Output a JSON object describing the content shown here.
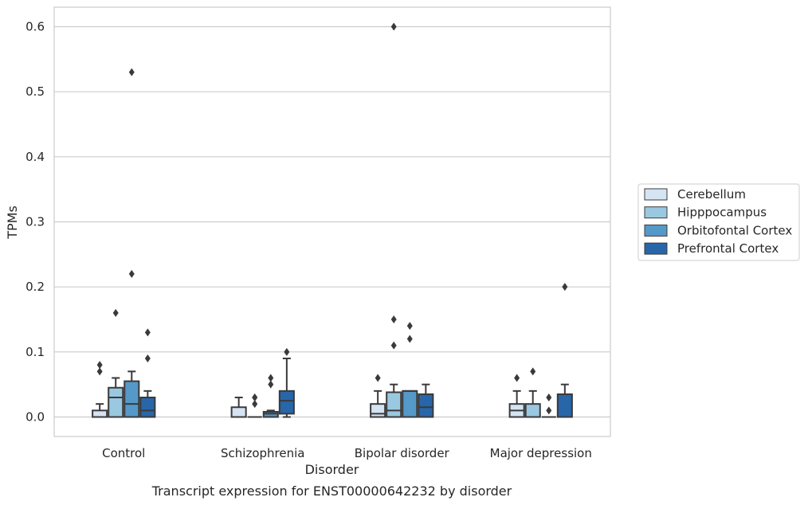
{
  "chart_data": {
    "type": "box",
    "title": "",
    "caption": "Transcript expression for ENST00000642232 by disorder",
    "xlabel": "Disorder",
    "ylabel": "TPMs",
    "ylim": [
      -0.03,
      0.63
    ],
    "yticks": [
      "0.0",
      "0.1",
      "0.2",
      "0.3",
      "0.4",
      "0.5",
      "0.6"
    ],
    "ytick_values": [
      0.0,
      0.1,
      0.2,
      0.3,
      0.4,
      0.5,
      0.6
    ],
    "grid": "horizontal",
    "legend_position": "right",
    "categories": [
      "Control",
      "Schizophrenia",
      "Bipolar disorder",
      "Major depression"
    ],
    "series": [
      {
        "name": "Cerebellum",
        "color": "#d5e4f2",
        "boxes": [
          {
            "q1": 0.0,
            "median": 0.0,
            "q3": 0.01,
            "whisker_low": 0.0,
            "whisker_high": 0.02,
            "outliers": [
              0.07,
              0.08
            ]
          },
          {
            "q1": 0.0,
            "median": 0.0,
            "q3": 0.015,
            "whisker_low": 0.0,
            "whisker_high": 0.03,
            "outliers": []
          },
          {
            "q1": 0.0,
            "median": 0.005,
            "q3": 0.02,
            "whisker_low": 0.0,
            "whisker_high": 0.04,
            "outliers": [
              0.06
            ]
          },
          {
            "q1": 0.0,
            "median": 0.01,
            "q3": 0.02,
            "whisker_low": 0.0,
            "whisker_high": 0.04,
            "outliers": [
              0.06
            ]
          }
        ]
      },
      {
        "name": "Hipppocampus",
        "color": "#9ac8e1",
        "boxes": [
          {
            "q1": 0.0,
            "median": 0.03,
            "q3": 0.045,
            "whisker_low": 0.0,
            "whisker_high": 0.06,
            "outliers": [
              0.16
            ]
          },
          {
            "q1": 0.0,
            "median": 0.0,
            "q3": 0.0,
            "whisker_low": 0.0,
            "whisker_high": 0.0,
            "outliers": [
              0.02,
              0.03,
              0.03
            ]
          },
          {
            "q1": 0.0,
            "median": 0.01,
            "q3": 0.038,
            "whisker_low": 0.0,
            "whisker_high": 0.05,
            "outliers": [
              0.11,
              0.15,
              0.6
            ]
          },
          {
            "q1": 0.0,
            "median": 0.0,
            "q3": 0.02,
            "whisker_low": 0.0,
            "whisker_high": 0.04,
            "outliers": [
              0.07
            ]
          }
        ]
      },
      {
        "name": "Orbitofontal Cortex",
        "color": "#5599c8",
        "boxes": [
          {
            "q1": 0.0,
            "median": 0.02,
            "q3": 0.055,
            "whisker_low": 0.0,
            "whisker_high": 0.07,
            "outliers": [
              0.22,
              0.53
            ]
          },
          {
            "q1": 0.0,
            "median": 0.005,
            "q3": 0.008,
            "whisker_low": 0.0,
            "whisker_high": 0.01,
            "outliers": [
              0.05,
              0.06
            ]
          },
          {
            "q1": 0.0,
            "median": 0.04,
            "q3": 0.04,
            "whisker_low": 0.0,
            "whisker_high": 0.04,
            "outliers": [
              0.12,
              0.14
            ]
          },
          {
            "q1": 0.0,
            "median": 0.0,
            "q3": 0.0,
            "whisker_low": 0.0,
            "whisker_high": 0.0,
            "outliers": [
              0.01,
              0.03
            ]
          }
        ]
      },
      {
        "name": "Prefrontal Cortex",
        "color": "#2766a9",
        "boxes": [
          {
            "q1": 0.0,
            "median": 0.01,
            "q3": 0.03,
            "whisker_low": 0.0,
            "whisker_high": 0.04,
            "outliers": [
              0.09,
              0.13
            ]
          },
          {
            "q1": 0.005,
            "median": 0.025,
            "q3": 0.04,
            "whisker_low": 0.0,
            "whisker_high": 0.09,
            "outliers": [
              0.1
            ]
          },
          {
            "q1": 0.0,
            "median": 0.015,
            "q3": 0.035,
            "whisker_low": 0.0,
            "whisker_high": 0.05,
            "outliers": []
          },
          {
            "q1": 0.0,
            "median": 0.0,
            "q3": 0.035,
            "whisker_low": 0.0,
            "whisker_high": 0.05,
            "outliers": [
              0.2
            ]
          }
        ]
      }
    ],
    "colors": {
      "box_edge": "#3a3a3a",
      "grid": "#cccccc",
      "frame": "#cccccc",
      "text": "#262626"
    }
  }
}
